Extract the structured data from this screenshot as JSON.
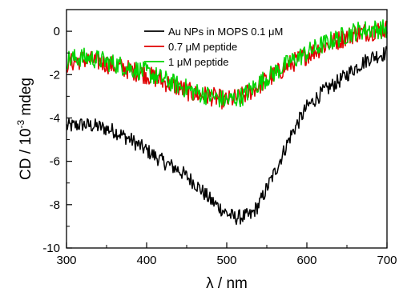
{
  "chart_data": {
    "type": "line",
    "xlabel": "λ / nm",
    "ylabel_main": "CD / 10",
    "ylabel_exp": "-3",
    "ylabel_unit": " mdeg",
    "xlim": [
      300,
      700
    ],
    "ylim": [
      -10,
      1
    ],
    "x_ticks": [
      300,
      400,
      500,
      600,
      700
    ],
    "y_ticks": [
      0,
      -2,
      -4,
      -6,
      -8,
      -10
    ],
    "x_tick_labels": [
      "300",
      "400",
      "500",
      "600",
      "700"
    ],
    "y_tick_labels": [
      "0",
      "-2",
      "-4",
      "-6",
      "-8",
      "-10"
    ],
    "grid": false,
    "legend_position": "top-right",
    "series": [
      {
        "name": "Au NPs in MOPS 0.1 μM",
        "color": "#000000",
        "noise": 0.35,
        "points": [
          [
            300,
            -4.4
          ],
          [
            320,
            -4.3
          ],
          [
            340,
            -4.4
          ],
          [
            360,
            -4.6
          ],
          [
            380,
            -5.0
          ],
          [
            400,
            -5.5
          ],
          [
            420,
            -6.0
          ],
          [
            440,
            -6.4
          ],
          [
            460,
            -7.0
          ],
          [
            480,
            -7.8
          ],
          [
            500,
            -8.4
          ],
          [
            510,
            -8.6
          ],
          [
            530,
            -8.5
          ],
          [
            540,
            -8.0
          ],
          [
            560,
            -6.5
          ],
          [
            580,
            -4.8
          ],
          [
            600,
            -3.5
          ],
          [
            620,
            -2.8
          ],
          [
            640,
            -2.3
          ],
          [
            660,
            -1.7
          ],
          [
            680,
            -1.2
          ],
          [
            700,
            -1.0
          ]
        ]
      },
      {
        "name": "0.7 μM peptide",
        "color": "#e00000",
        "noise": 0.45,
        "points": [
          [
            300,
            -1.5
          ],
          [
            320,
            -1.3
          ],
          [
            340,
            -1.4
          ],
          [
            360,
            -1.6
          ],
          [
            380,
            -1.8
          ],
          [
            400,
            -2.0
          ],
          [
            420,
            -2.3
          ],
          [
            440,
            -2.6
          ],
          [
            460,
            -2.9
          ],
          [
            480,
            -3.0
          ],
          [
            500,
            -3.2
          ],
          [
            520,
            -3.0
          ],
          [
            540,
            -2.5
          ],
          [
            560,
            -2.0
          ],
          [
            580,
            -1.5
          ],
          [
            600,
            -1.1
          ],
          [
            620,
            -0.7
          ],
          [
            640,
            -0.4
          ],
          [
            660,
            -0.1
          ],
          [
            680,
            0.0
          ],
          [
            700,
            0.1
          ]
        ]
      },
      {
        "name": "1 μM peptide",
        "color": "#00d400",
        "noise": 0.45,
        "points": [
          [
            300,
            -1.3
          ],
          [
            320,
            -1.2
          ],
          [
            340,
            -1.3
          ],
          [
            360,
            -1.5
          ],
          [
            380,
            -1.7
          ],
          [
            400,
            -1.9
          ],
          [
            420,
            -2.2
          ],
          [
            440,
            -2.5
          ],
          [
            460,
            -2.8
          ],
          [
            480,
            -3.0
          ],
          [
            500,
            -3.2
          ],
          [
            520,
            -3.0
          ],
          [
            540,
            -2.4
          ],
          [
            560,
            -1.9
          ],
          [
            580,
            -1.4
          ],
          [
            600,
            -1.0
          ],
          [
            620,
            -0.6
          ],
          [
            640,
            -0.3
          ],
          [
            660,
            0.0
          ],
          [
            680,
            0.1
          ],
          [
            700,
            0.1
          ]
        ]
      }
    ]
  }
}
